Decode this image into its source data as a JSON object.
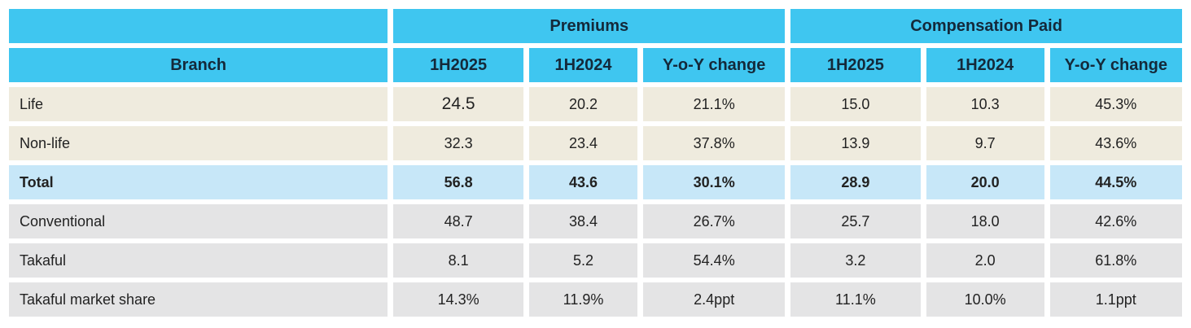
{
  "table": {
    "group_headers": {
      "premiums": "Premiums",
      "compensation": "Compensation Paid"
    },
    "branch_header": "Branch",
    "sub_headers": [
      "1H2025",
      "1H2024",
      "Y-o-Y change",
      "1H2025",
      "1H2024",
      "Y-o-Y change"
    ],
    "rows": [
      {
        "label": "Life",
        "style": "beige",
        "values": [
          "24.5",
          "20.2",
          "21.1%",
          "15.0",
          "10.3",
          "45.3%"
        ]
      },
      {
        "label": "Non-life",
        "style": "beige",
        "values": [
          "32.3",
          "23.4",
          "37.8%",
          "13.9",
          "9.7",
          "43.6%"
        ]
      },
      {
        "label": "Total",
        "style": "total",
        "values": [
          "56.8",
          "43.6",
          "30.1%",
          "28.9",
          "20.0",
          "44.5%"
        ]
      },
      {
        "label": "Conventional",
        "style": "gray",
        "values": [
          "48.7",
          "38.4",
          "26.7%",
          "25.7",
          "18.0",
          "42.6%"
        ]
      },
      {
        "label": "Takaful",
        "style": "gray",
        "values": [
          "8.1",
          "5.2",
          "54.4%",
          "3.2",
          "2.0",
          "61.8%"
        ]
      },
      {
        "label": "Takaful market share",
        "style": "gray",
        "values": [
          "14.3%",
          "11.9%",
          "2.4ppt",
          "11.1%",
          "10.0%",
          "1.1ppt"
        ]
      }
    ]
  },
  "colors": {
    "header_bg": "#3fc6f0",
    "header_text": "#14293a",
    "row_beige_bg": "#efebde",
    "row_gray_bg": "#e4e4e5",
    "row_total_bg": "#c7e7f8",
    "body_text": "#222222",
    "page_bg": "#ffffff"
  }
}
